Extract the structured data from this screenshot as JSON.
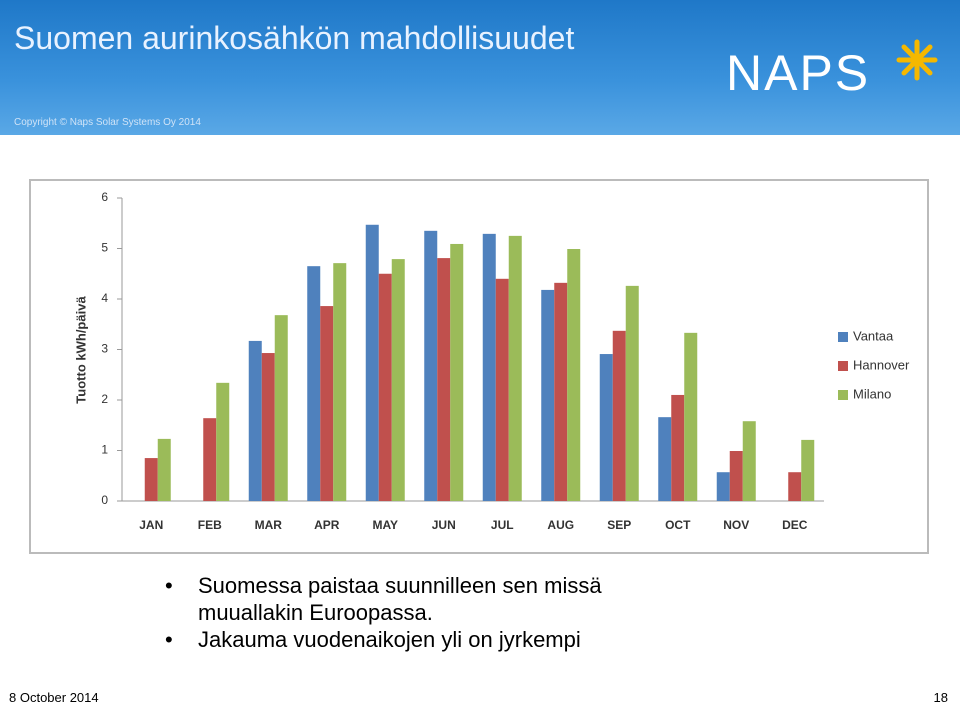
{
  "header": {
    "title": "Suomen aurinkosähkön mahdollisuudet",
    "copyright": "Copyright © Naps Solar Systems Oy 2014",
    "logo": "NAPS"
  },
  "chart_data": {
    "type": "bar",
    "ylabel": "Tuotto kWh/päivä",
    "categories": [
      "JAN",
      "FEB",
      "MAR",
      "APR",
      "MAY",
      "JUN",
      "JUL",
      "AUG",
      "SEP",
      "OCT",
      "NOV",
      "DEC"
    ],
    "series": [
      {
        "name": "Vantaa",
        "color": "#4f81bd",
        "values": [
          null,
          null,
          3.17,
          4.65,
          5.47,
          5.35,
          5.29,
          4.18,
          2.91,
          1.66,
          0.57,
          null
        ]
      },
      {
        "name": "Hannover",
        "color": "#c0504d",
        "values": [
          0.85,
          1.64,
          2.93,
          3.86,
          4.5,
          4.81,
          4.4,
          4.32,
          3.37,
          2.1,
          0.99,
          0.57
        ]
      },
      {
        "name": "Milano",
        "color": "#9bbb59",
        "values": [
          1.23,
          2.34,
          3.68,
          4.71,
          4.79,
          5.09,
          5.25,
          4.99,
          4.26,
          3.33,
          1.58,
          1.21
        ]
      }
    ],
    "ylim": [
      0,
      6
    ],
    "yticks": [
      0,
      1,
      2,
      3,
      4,
      5,
      6
    ],
    "grid": false,
    "legend": "right"
  },
  "bullets": [
    "Suomessa paistaa suunnilleen sen missä muuallakin Euroopassa.",
    "Jakauma vuodenaikojen yli on jyrkempi"
  ],
  "footer": {
    "date": "8 October 2014",
    "page": "18"
  }
}
